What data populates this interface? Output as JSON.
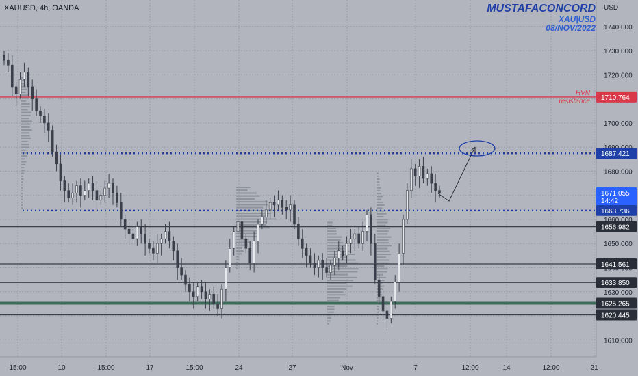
{
  "header": {
    "symbol": "XAUUSD, 4h, OANDA",
    "author": "MUSTAFACONCORD",
    "pair": "XAU|USD",
    "date": "08/NOV/2022",
    "currency": "USD"
  },
  "chart_data": {
    "type": "candlestick",
    "x_tick_labels": [
      "15:00",
      "10",
      "15:00",
      "17",
      "15:00",
      "24",
      "27",
      "Nov",
      "7",
      "12:00",
      "14",
      "12:00",
      "21"
    ],
    "y_tick_labels": [
      "1610.000",
      "1620.000",
      "1630.000",
      "1640.000",
      "1650.000",
      "1660.000",
      "1670.000",
      "1680.000",
      "1690.000",
      "1700.000",
      "1710.000",
      "1720.000",
      "1730.000",
      "1740.000"
    ],
    "ylim": [
      1603,
      1751
    ],
    "price_levels": [
      {
        "label": "1710.764",
        "value": 1710.764,
        "color": "#d83a4a",
        "style": "solid"
      },
      {
        "label": "1687.421",
        "value": 1687.421,
        "color": "#1e3fa8",
        "style": "dotted"
      },
      {
        "label": "1663.736",
        "value": 1663.736,
        "color": "#1e3fa8",
        "style": "dotted"
      },
      {
        "label": "1656.982",
        "value": 1656.982,
        "color": "#3a3e48",
        "style": "solid"
      },
      {
        "label": "1641.561",
        "value": 1641.561,
        "color": "#3a3e48",
        "style": "solid"
      },
      {
        "label": "1633.850",
        "value": 1633.85,
        "color": "#3a3e48",
        "style": "solid"
      },
      {
        "label": "1625.265",
        "value": 1625.265,
        "color": "#3e6b5a",
        "style": "solid"
      },
      {
        "label": "1620.445",
        "value": 1620.445,
        "color": "#3a3e48",
        "style": "solid"
      }
    ],
    "current_price": {
      "label": "1671.055",
      "countdown": "14:42",
      "value": 1671.055,
      "color": "#2962ff"
    },
    "annotations": [
      {
        "text": "HVN",
        "value": 1712.5,
        "color": "#d83a4a"
      },
      {
        "text": "resistance",
        "value": 1709.0,
        "color": "#d83a4a"
      }
    ],
    "closes": [
      1726,
      1724,
      1715,
      1712,
      1718,
      1721,
      1715,
      1710,
      1705,
      1703,
      1700,
      1697,
      1688,
      1683,
      1676,
      1672,
      1669,
      1671,
      1674,
      1670,
      1672,
      1675,
      1672,
      1668,
      1670,
      1673,
      1675,
      1671,
      1667,
      1660,
      1656,
      1654,
      1652,
      1657,
      1654,
      1650,
      1648,
      1646,
      1650,
      1652,
      1655,
      1651,
      1647,
      1640,
      1637,
      1633,
      1630,
      1628,
      1632,
      1630,
      1627,
      1629,
      1625,
      1623,
      1631,
      1640,
      1648,
      1655,
      1659,
      1652,
      1648,
      1642,
      1651,
      1658,
      1661,
      1664,
      1667,
      1666,
      1668,
      1665,
      1664,
      1666,
      1658,
      1652,
      1648,
      1645,
      1642,
      1640,
      1643,
      1640,
      1638,
      1641,
      1644,
      1647,
      1645,
      1650,
      1652,
      1654,
      1650,
      1655,
      1662,
      1650,
      1635,
      1628,
      1622,
      1619,
      1626,
      1634,
      1646,
      1660,
      1672,
      1681,
      1678,
      1682,
      1677,
      1679,
      1675,
      1672,
      1671
    ]
  }
}
